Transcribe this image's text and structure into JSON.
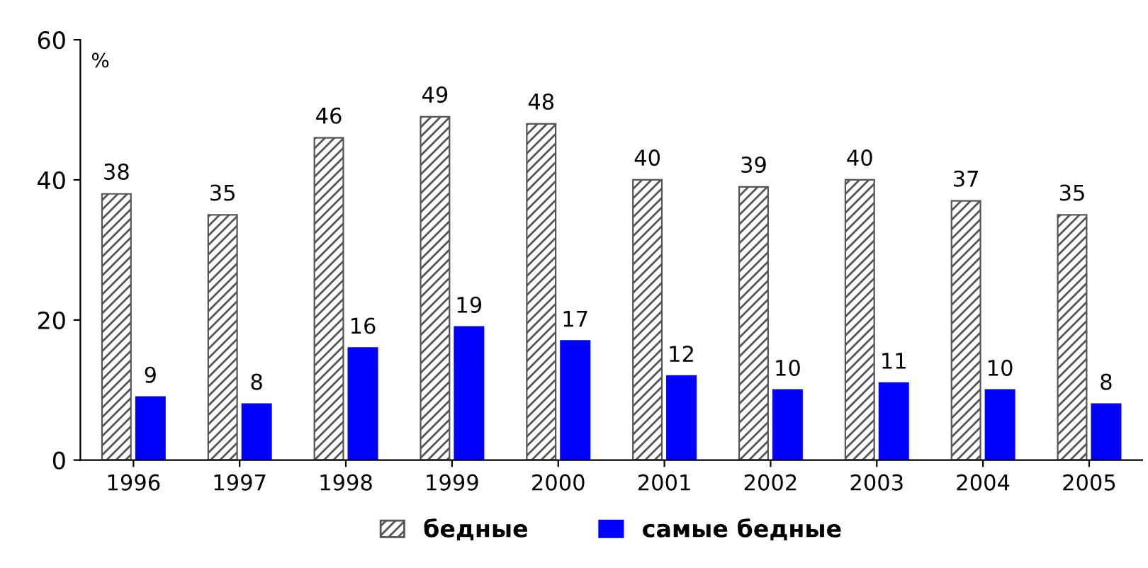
{
  "chart_data": {
    "type": "bar",
    "categories": [
      "1996",
      "1997",
      "1998",
      "1999",
      "2000",
      "2001",
      "2002",
      "2003",
      "2004",
      "2005"
    ],
    "series": [
      {
        "name": "бедные",
        "color": "#555555",
        "values": [
          38,
          35,
          46,
          49,
          48,
          40,
          39,
          40,
          37,
          35
        ]
      },
      {
        "name": "самые бедные",
        "color": "#0000ff",
        "values": [
          9,
          8,
          16,
          19,
          17,
          12,
          10,
          11,
          10,
          8
        ]
      }
    ],
    "ylim": [
      0,
      60
    ],
    "yticks": [
      0,
      20,
      40,
      60
    ],
    "annotations": [
      "%"
    ],
    "data_labels": true,
    "legend": "bottom",
    "grid": false
  }
}
